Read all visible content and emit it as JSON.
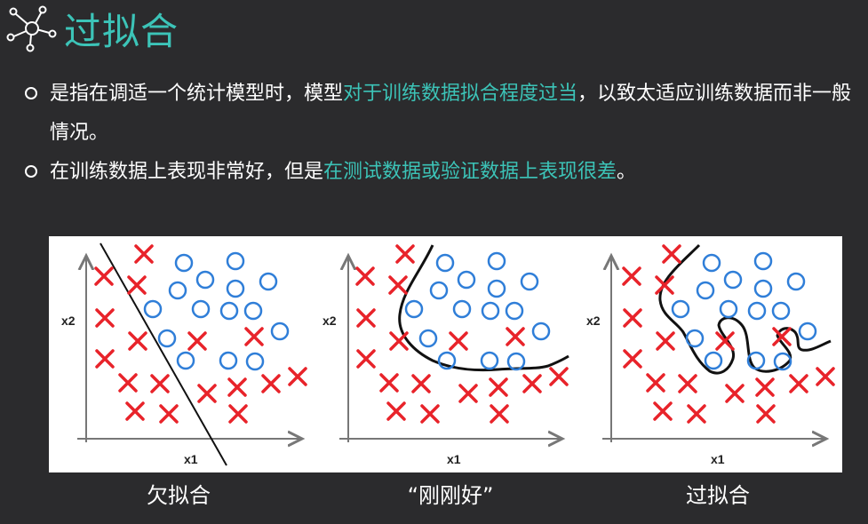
{
  "header": {
    "title": "过拟合",
    "icon": "network-icon"
  },
  "bullets": [
    {
      "parts": [
        {
          "text": "是指在调适一个统计模型时，模型",
          "highlight": false
        },
        {
          "text": "对于训练数据拟合程度过当",
          "highlight": true
        },
        {
          "text": "，以致太适应训练数据而非一般情况。",
          "highlight": false
        }
      ]
    },
    {
      "parts": [
        {
          "text": "在训练数据上表现非常好，但是",
          "highlight": false
        },
        {
          "text": "在测试数据或验证数据上表现很差",
          "highlight": true
        },
        {
          "text": "。",
          "highlight": false
        }
      ]
    }
  ],
  "colors": {
    "background": "#2b2b2d",
    "accent": "#3cc4b8",
    "cross": "#e8232a",
    "circle": "#2f7ed8"
  },
  "figure": {
    "panels": [
      {
        "x_label": "x1",
        "y_label": "x2",
        "caption": "欠拟合"
      },
      {
        "x_label": "x1",
        "y_label": "x2",
        "caption": "“刚刚好”"
      },
      {
        "x_label": "x1",
        "y_label": "x2",
        "caption": "过拟合"
      }
    ]
  }
}
